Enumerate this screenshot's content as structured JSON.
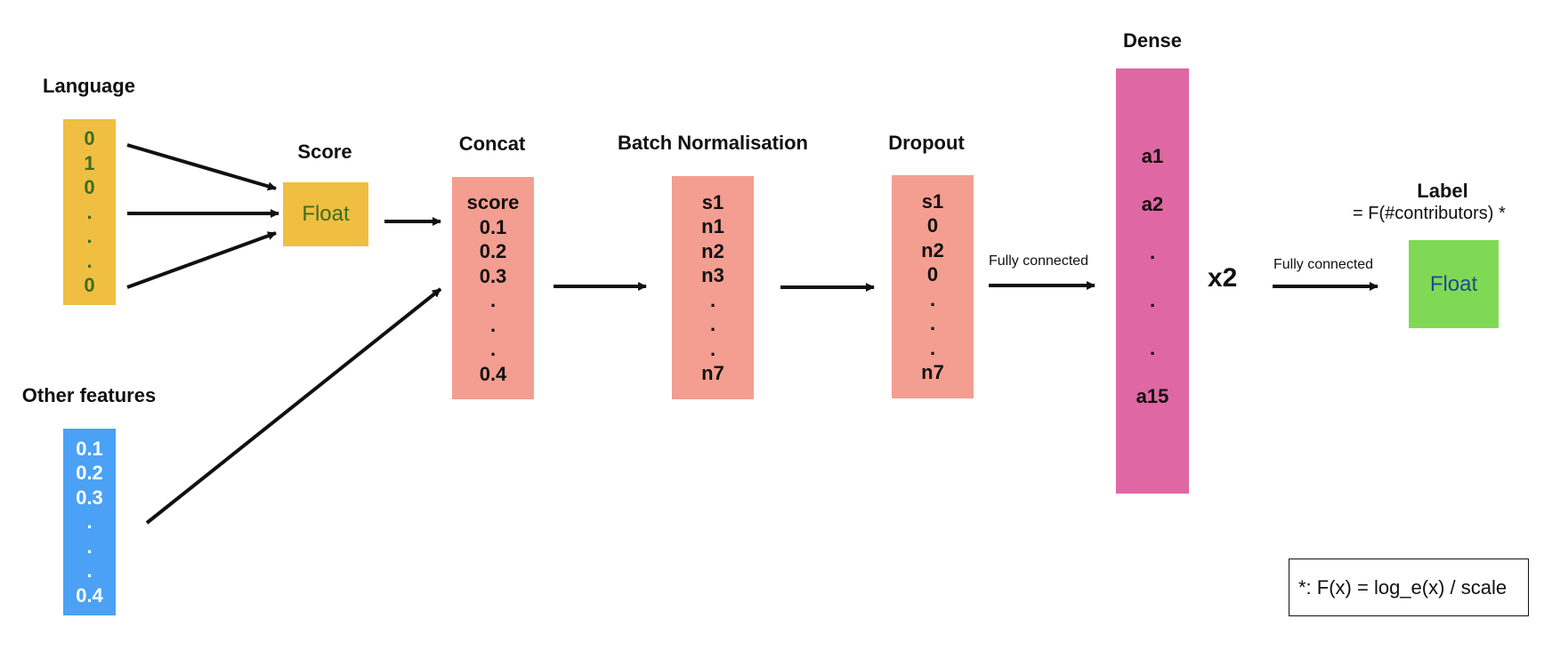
{
  "colors": {
    "language_box": "#f0bf42",
    "language_text": "#3f6d1f",
    "score_box": "#f0bf42",
    "score_text": "#3f6d1f",
    "salmon_box": "#f39e90",
    "features_box": "#4aa1f5",
    "features_text": "#ffffff",
    "dense_box": "#df67a3",
    "label_box": "#80d955",
    "label_text": "#1d4d8c"
  },
  "language": {
    "title": "Language",
    "values": [
      "0",
      "1",
      "0",
      ".",
      ".",
      ".",
      "0"
    ]
  },
  "other_features": {
    "title": "Other features",
    "values": [
      "0.1",
      "0.2",
      "0.3",
      ".",
      ".",
      ".",
      "0.4"
    ]
  },
  "score": {
    "title": "Score",
    "value": "Float"
  },
  "concat": {
    "title": "Concat",
    "values": [
      "score",
      "0.1",
      "0.2",
      "0.3",
      ".",
      ".",
      ".",
      "0.4"
    ]
  },
  "batch_norm": {
    "title": "Batch Normalisation",
    "values": [
      "s1",
      "n1",
      "n2",
      "n3",
      ".",
      ".",
      ".",
      "n7"
    ]
  },
  "dropout": {
    "title": "Dropout",
    "values": [
      "s1",
      "0",
      "n2",
      "0",
      ".",
      ".",
      ".",
      "n7"
    ]
  },
  "dense": {
    "title": "Dense",
    "values": [
      "a1",
      "a2",
      ".",
      ".",
      ".",
      "a15"
    ]
  },
  "repeat": "x2",
  "fc_label_1": "Fully connected",
  "fc_label_2": "Fully connected",
  "label": {
    "title": "Label",
    "subtitle": "= F(#contributors) *",
    "value": "Float"
  },
  "footnote": "*: F(x) = log_e(x) / scale"
}
